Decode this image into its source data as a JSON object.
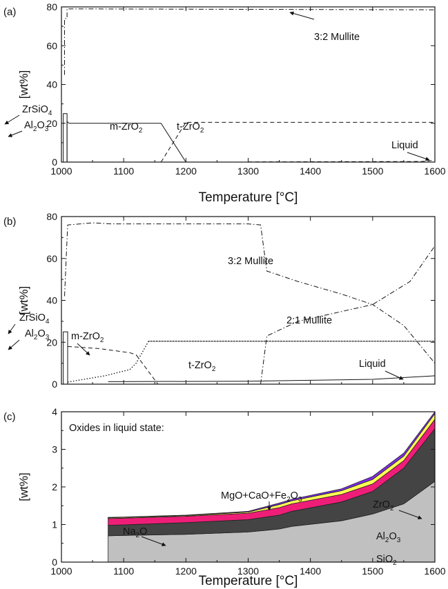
{
  "chart_data": [
    {
      "panel": "(a)",
      "type": "line",
      "xlabel": "Temperature [°C]",
      "ylabel": "[wt%]",
      "xlim": [
        1000,
        1600
      ],
      "ylim": [
        0,
        80
      ],
      "xticks": [
        1000,
        1100,
        1200,
        1300,
        1400,
        1500,
        1600
      ],
      "yticks": [
        0,
        20,
        40,
        60,
        80
      ],
      "series": [
        {
          "name": "3:2 Mullite",
          "style": "dash-dot",
          "x": [
            1005,
            1005,
            1009,
            1009,
            1600
          ],
          "y": [
            45,
            74,
            74,
            79,
            78.5
          ]
        },
        {
          "name": "ZrSiO4",
          "style": "solid",
          "x": [
            1003,
            1003,
            1009,
            1009
          ],
          "y": [
            0,
            25,
            25,
            0
          ]
        },
        {
          "name": "Al2O3",
          "style": "solid",
          "x": [
            1009,
            1009,
            1012
          ],
          "y": [
            0,
            21,
            20
          ]
        },
        {
          "name": "m-ZrO2",
          "style": "solid",
          "x": [
            1012,
            1150,
            1160,
            1200
          ],
          "y": [
            20,
            20,
            20,
            0
          ]
        },
        {
          "name": "t-ZrO2",
          "style": "dashed",
          "x": [
            1160,
            1200,
            1600
          ],
          "y": [
            0,
            20.5,
            20.5
          ]
        },
        {
          "name": "Liquid",
          "style": "dashed",
          "x": [
            1300,
            1580,
            1600
          ],
          "y": [
            0.1,
            0.3,
            1
          ]
        }
      ],
      "annotations": [
        {
          "text": "3:2 Mullite",
          "series": "3:2 Mullite"
        },
        {
          "text": "ZrSiO",
          "sub": "4"
        },
        {
          "text": "Al",
          "sub": "2",
          "text2": "O",
          "sub2": "3"
        },
        {
          "text": "m-ZrO",
          "sub": "2"
        },
        {
          "text": "t-ZrO",
          "sub": "2"
        },
        {
          "text": "Liquid"
        }
      ]
    },
    {
      "panel": "(b)",
      "type": "line",
      "xlabel": "",
      "ylabel": "[wt%]",
      "xlim": [
        1000,
        1600
      ],
      "ylim": [
        0,
        80
      ],
      "yticks": [
        0,
        20,
        40,
        60,
        80
      ],
      "series": [
        {
          "name": "3:2 Mullite",
          "style": "dash-dot",
          "x": [
            1005,
            1010,
            1050,
            1080,
            1300,
            1320,
            1330,
            1380,
            1450,
            1500,
            1550,
            1600
          ],
          "y": [
            42,
            76,
            77,
            76.5,
            76.5,
            76,
            54,
            49,
            43,
            38,
            28,
            10
          ]
        },
        {
          "name": "2:1 Mullite",
          "style": "dash-dot",
          "x": [
            1320,
            1330,
            1380,
            1500,
            1560,
            1600
          ],
          "y": [
            0,
            23,
            30,
            38,
            49,
            66
          ]
        },
        {
          "name": "ZrSiO4",
          "style": "solid",
          "x": [
            1003,
            1003,
            1010,
            1010
          ],
          "y": [
            0,
            25,
            25,
            0
          ]
        },
        {
          "name": "Al2O3",
          "style": "dashed",
          "x": [
            1010,
            1060,
            1110,
            1120,
            1145,
            1155
          ],
          "y": [
            18,
            17,
            15,
            14,
            4,
            0
          ]
        },
        {
          "name": "m-ZrO2",
          "style": "dotted",
          "x": [
            1010,
            1070,
            1110,
            1120,
            1140,
            1600
          ],
          "y": [
            1,
            4,
            7,
            10,
            20.5,
            20.5
          ]
        },
        {
          "name": "t-ZrO2",
          "style": "dotted",
          "x": [
            1140,
            1600
          ],
          "y": [
            20.5,
            20.5
          ]
        },
        {
          "name": "Liquid",
          "style": "solid",
          "x": [
            1075,
            1300,
            1500,
            1600
          ],
          "y": [
            1.2,
            1.4,
            2.3,
            4
          ]
        }
      ],
      "annotations": [
        {
          "text": "3:2 Mullite"
        },
        {
          "text": "2:1 Mullite"
        },
        {
          "text": "ZrSiO",
          "sub": "4"
        },
        {
          "text": "Al",
          "sub": "2",
          "text2": "O",
          "sub2": "3"
        },
        {
          "text": "m-ZrO",
          "sub": "2"
        },
        {
          "text": "t-ZrO",
          "sub": "2"
        },
        {
          "text": "Liquid"
        }
      ]
    },
    {
      "panel": "(c)",
      "type": "area",
      "title": "Oxides in liquid state:",
      "xlabel": "Temperature [°C]",
      "ylabel": "[wt%]",
      "xlim": [
        1000,
        1600
      ],
      "ylim": [
        0,
        4
      ],
      "xticks": [
        1000,
        1100,
        1200,
        1300,
        1400,
        1500,
        1600
      ],
      "yticks": [
        0,
        1,
        2,
        3,
        4
      ],
      "x": [
        1075,
        1100,
        1200,
        1300,
        1350,
        1370,
        1450,
        1500,
        1550,
        1600
      ],
      "stack_note": "cumulative top of each layer in wt%",
      "series": [
        {
          "name": "SiO2",
          "color": "#c0c0c0",
          "values": [
            0.7,
            0.71,
            0.74,
            0.8,
            0.88,
            0.95,
            1.1,
            1.28,
            1.55,
            2.15
          ]
        },
        {
          "name": "Al2O3",
          "color": "#444444",
          "values": [
            0.98,
            0.99,
            1.05,
            1.13,
            1.25,
            1.35,
            1.6,
            1.88,
            2.5,
            3.55
          ]
        },
        {
          "name": "Na2O",
          "color": "#ee1e78",
          "values": [
            1.16,
            1.17,
            1.22,
            1.3,
            1.45,
            1.55,
            1.8,
            2.08,
            2.7,
            3.8
          ]
        },
        {
          "name": "MgO+CaO+Fe2O3",
          "color": "#ffff55",
          "values": [
            1.18,
            1.19,
            1.24,
            1.33,
            1.53,
            1.63,
            1.9,
            2.2,
            2.82,
            3.95
          ]
        },
        {
          "name": "ZrO2",
          "color": "#7e2ee8",
          "values": [
            1.19,
            1.2,
            1.25,
            1.35,
            1.57,
            1.67,
            1.95,
            2.28,
            2.9,
            4.0
          ]
        }
      ],
      "annotations": [
        {
          "text": "ZrO",
          "sub": "2"
        },
        {
          "text": "MgO+CaO+Fe",
          "sub": "2",
          "text2": "O",
          "sub2": "3"
        },
        {
          "text": "Na",
          "sub": "2",
          "text2": "O"
        },
        {
          "text": "Al",
          "sub": "2",
          "text2": "O",
          "sub2": "3"
        },
        {
          "text": "SiO",
          "sub": "2"
        }
      ]
    }
  ]
}
